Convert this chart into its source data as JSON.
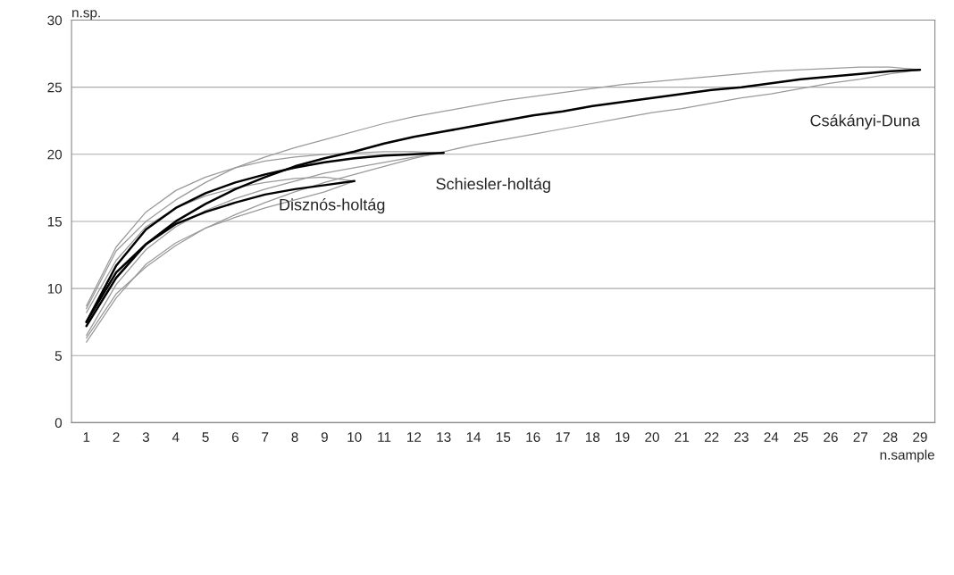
{
  "chart_data": {
    "type": "line",
    "xlabel": "n.sample",
    "ylabel": "n.sp.",
    "x": [
      1,
      2,
      3,
      4,
      5,
      6,
      7,
      8,
      9,
      10,
      11,
      12,
      13,
      14,
      15,
      16,
      17,
      18,
      19,
      20,
      21,
      22,
      23,
      24,
      25,
      26,
      27,
      28,
      29
    ],
    "xlim": [
      0.5,
      29.5
    ],
    "xticks": [
      1,
      2,
      3,
      4,
      5,
      6,
      7,
      8,
      9,
      10,
      11,
      12,
      13,
      14,
      15,
      16,
      17,
      18,
      19,
      20,
      21,
      22,
      23,
      24,
      25,
      26,
      27,
      28,
      29
    ],
    "ylim": [
      0,
      30
    ],
    "yticks": [
      0,
      5,
      10,
      15,
      20,
      25,
      30
    ],
    "grid": "y",
    "legend": false,
    "marker": "none",
    "line_style": "solid",
    "series": [
      {
        "color": "#9a9a9a",
        "values": [
          8.5,
          12.8,
          15.0,
          16.6,
          17.9,
          19.0,
          19.8,
          20.5,
          21.1,
          21.7,
          22.3,
          22.8,
          23.2,
          23.6,
          24.0,
          24.3,
          24.6,
          24.9,
          25.2,
          25.4,
          25.6,
          25.8,
          26.0,
          26.2,
          26.3,
          26.4,
          26.5,
          26.5,
          26.3
        ]
      },
      {
        "color": "#9a9a9a",
        "values": [
          6.3,
          9.6,
          11.6,
          13.2,
          14.5,
          15.5,
          16.4,
          17.2,
          17.9,
          18.5,
          19.1,
          19.7,
          20.2,
          20.7,
          21.1,
          21.5,
          21.9,
          22.3,
          22.7,
          23.1,
          23.4,
          23.8,
          24.2,
          24.5,
          24.9,
          25.3,
          25.6,
          26.0,
          26.3
        ]
      },
      {
        "color": "#9a9a9a",
        "x": [
          1,
          2,
          3,
          4,
          5,
          6,
          7,
          8,
          9,
          10,
          11,
          12,
          13
        ],
        "values": [
          8.7,
          13.1,
          15.7,
          17.3,
          18.3,
          19.0,
          19.5,
          19.8,
          20.0,
          20.1,
          20.2,
          20.2,
          20.1
        ]
      },
      {
        "color": "#9a9a9a",
        "x": [
          1,
          2,
          3,
          4,
          5,
          6,
          7,
          8,
          9,
          10,
          11,
          12,
          13
        ],
        "values": [
          6.5,
          10.3,
          12.9,
          14.6,
          15.8,
          16.7,
          17.4,
          18.0,
          18.6,
          19.0,
          19.4,
          19.8,
          20.1
        ]
      },
      {
        "color": "#9a9a9a",
        "x": [
          1,
          2,
          3,
          4,
          5,
          6,
          7,
          8,
          9,
          10
        ],
        "values": [
          8.2,
          12.1,
          14.6,
          16.0,
          16.9,
          17.5,
          17.9,
          18.2,
          18.3,
          18.0
        ]
      },
      {
        "color": "#9a9a9a",
        "x": [
          1,
          2,
          3,
          4,
          5,
          6,
          7,
          8,
          9,
          10
        ],
        "values": [
          6.0,
          9.3,
          11.8,
          13.4,
          14.5,
          15.3,
          16.0,
          16.6,
          17.2,
          18.0
        ]
      },
      {
        "name": "Csákányi-Duna",
        "color": "#000000",
        "values": [
          7.5,
          11.2,
          13.3,
          15.0,
          16.3,
          17.4,
          18.3,
          19.1,
          19.7,
          20.2,
          20.8,
          21.3,
          21.7,
          22.1,
          22.5,
          22.9,
          23.2,
          23.6,
          23.9,
          24.2,
          24.5,
          24.8,
          25.0,
          25.3,
          25.6,
          25.8,
          26.0,
          26.2,
          26.3
        ]
      },
      {
        "name": "Schiesler-holtág",
        "color": "#000000",
        "x": [
          1,
          2,
          3,
          4,
          5,
          6,
          7,
          8,
          9,
          10,
          11,
          12,
          13
        ],
        "values": [
          7.5,
          11.7,
          14.4,
          16.0,
          17.1,
          17.9,
          18.5,
          19.0,
          19.4,
          19.7,
          19.9,
          20.0,
          20.1
        ]
      },
      {
        "name": "Disznós-holtág",
        "color": "#000000",
        "x": [
          1,
          2,
          3,
          4,
          5,
          6,
          7,
          8,
          9,
          10
        ],
        "values": [
          7.2,
          10.8,
          13.3,
          14.8,
          15.7,
          16.4,
          17.0,
          17.4,
          17.7,
          18.0
        ]
      }
    ]
  }
}
